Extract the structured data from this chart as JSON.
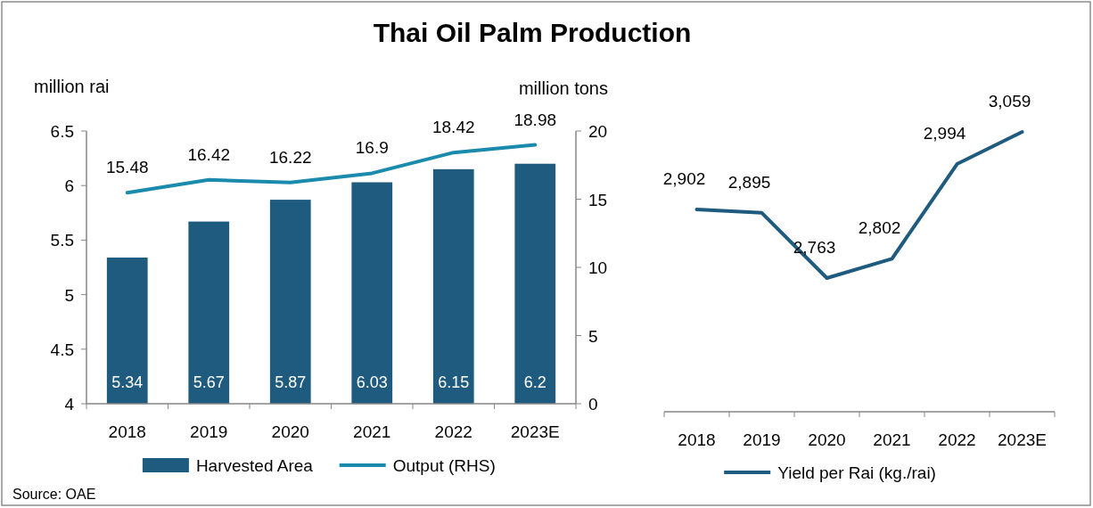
{
  "chart_data": [
    {
      "type": "bar",
      "title": "Thai Oil Palm Production",
      "categories": [
        "2018",
        "2019",
        "2020",
        "2021",
        "2022",
        "2023E"
      ],
      "series": [
        {
          "name": "Harvested Area",
          "color": "#1f5b7e",
          "values": [
            5.34,
            5.67,
            5.87,
            6.03,
            6.15,
            6.2
          ]
        },
        {
          "name": "Output (RHS)",
          "type": "line",
          "axis": "y2",
          "color": "#1a8bad",
          "values": [
            15.48,
            16.42,
            16.22,
            16.9,
            18.42,
            18.98
          ]
        }
      ],
      "ylabel": "million rai",
      "y2label": "million tons",
      "ylim": [
        4,
        6.5
      ],
      "yticks": [
        4,
        4.5,
        5,
        5.5,
        6,
        6.5
      ],
      "y2lim": [
        0,
        20
      ],
      "y2ticks": [
        0,
        5,
        10,
        15,
        20
      ],
      "data_labels": true,
      "legend": "bottom",
      "annotations": [
        "Source: OAE"
      ]
    },
    {
      "type": "line",
      "categories": [
        "2018",
        "2019",
        "2020",
        "2021",
        "2022",
        "2023E"
      ],
      "series": [
        {
          "name": "Yield per Rai (kg./rai)",
          "color": "#1f5b7e",
          "values": [
            2902,
            2895,
            2763,
            2802,
            2994,
            3059
          ],
          "value_labels": [
            "2,902",
            "2,895",
            "2,763",
            "2,802",
            "2,994",
            "3,059"
          ]
        }
      ],
      "legend": "bottom"
    }
  ]
}
